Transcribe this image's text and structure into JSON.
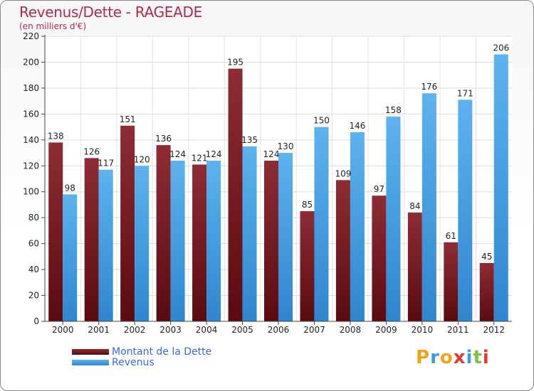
{
  "title": "Revenus/Dette - RAGEADE",
  "subtitle": "(en milliers d'€)",
  "logo": {
    "text": "Proxiti",
    "letters": [
      "P",
      "r",
      "o",
      "x",
      "i",
      "t",
      "i"
    ],
    "colors": [
      "#f2a31b",
      "#3d9be0",
      "#f2a31b",
      "#e23a2d",
      "#3d9be0",
      "#7cc242",
      "#e23a2d"
    ]
  },
  "chart_data": {
    "type": "bar",
    "title": "Revenus/Dette - RAGEADE",
    "subtitle": "(en milliers d'€)",
    "xlabel": "",
    "ylabel": "",
    "ylim": [
      0,
      220
    ],
    "yticks": [
      0,
      20,
      40,
      60,
      80,
      100,
      120,
      140,
      160,
      180,
      200,
      220
    ],
    "grid": true,
    "categories": [
      "2000",
      "2001",
      "2002",
      "2003",
      "2004",
      "2005",
      "2006",
      "2007",
      "2008",
      "2009",
      "2010",
      "2011",
      "2012"
    ],
    "series": [
      {
        "name": "Montant de la Dette",
        "color": "#8b2a32",
        "values": [
          138,
          126,
          151,
          136,
          121,
          195,
          124,
          85,
          109,
          97,
          84,
          61,
          45
        ]
      },
      {
        "name": "Revenus",
        "color": "#4aa3e6",
        "values": [
          98,
          117,
          120,
          124,
          124,
          135,
          130,
          150,
          146,
          158,
          176,
          171,
          206
        ]
      }
    ],
    "legend_position": "bottom-left"
  }
}
